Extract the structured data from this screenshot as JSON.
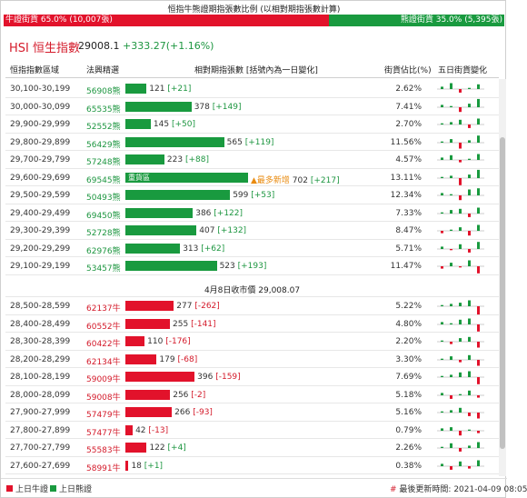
{
  "top_title": "恒指牛熊證期指張數比例 (以相對期指張數計算)",
  "ratio": {
    "bull_label": "牛證街貨 65.0% (10,007張)",
    "bull_pct": 65.0,
    "bear_label": "熊證街貨 35.0% (5,395張)",
    "bear_pct": 35.0
  },
  "index": {
    "title": "HSI 恒生指數",
    "value": "29008.1",
    "change": "+333.27(+1.16%)"
  },
  "headers": {
    "range": "恒指指數區域",
    "code": "法興精選",
    "contracts": "相對期指張數 [括號內為一日變化]",
    "ratio": "街貨佔比(%)",
    "five_day": "五日街貨變化"
  },
  "rows_above": [
    {
      "range": "30,100-30,199",
      "code": "56908熊",
      "type": "bear",
      "value": 121,
      "change": "[+21]",
      "pct": "2.62%",
      "spark": [
        2,
        5,
        -3,
        1,
        4
      ]
    },
    {
      "range": "30,000-30,099",
      "code": "65535熊",
      "type": "bear",
      "value": 378,
      "change": "[+149]",
      "pct": "7.41%",
      "spark": [
        2,
        1,
        -4,
        3,
        7
      ]
    },
    {
      "range": "29,900-29,999",
      "code": "52552熊",
      "type": "bear",
      "value": 145,
      "change": "[+50]",
      "pct": "2.70%",
      "spark": [
        1,
        2,
        4,
        -3,
        5
      ]
    },
    {
      "range": "29,800-29,899",
      "code": "56429熊",
      "type": "bear",
      "value": 565,
      "change": "[+119]",
      "pct": "11.56%",
      "spark": [
        1,
        3,
        -5,
        2,
        6
      ]
    },
    {
      "range": "29,700-29,799",
      "code": "57248熊",
      "type": "bear",
      "value": 223,
      "change": "[+88]",
      "pct": "4.57%",
      "spark": [
        2,
        4,
        -2,
        1,
        5
      ]
    },
    {
      "range": "29,600-29,699",
      "code": "69545熊",
      "type": "bear",
      "value": 702,
      "change": "[+217]",
      "pct": "13.11%",
      "spark": [
        1,
        2,
        -6,
        3,
        7
      ],
      "inner": "重貨區",
      "flag": "▲最多新增"
    },
    {
      "range": "29,500-29,599",
      "code": "50493熊",
      "type": "bear",
      "value": 599,
      "change": "[+53]",
      "pct": "12.34%",
      "spark": [
        2,
        1,
        -4,
        5,
        6
      ]
    },
    {
      "range": "29,400-29,499",
      "code": "69450熊",
      "type": "bear",
      "value": 386,
      "change": "[+122]",
      "pct": "7.33%",
      "spark": [
        1,
        3,
        4,
        -3,
        5
      ]
    },
    {
      "range": "29,300-29,399",
      "code": "52728熊",
      "type": "bear",
      "value": 407,
      "change": "[+132]",
      "pct": "8.47%",
      "spark": [
        -2,
        1,
        3,
        -4,
        5
      ]
    },
    {
      "range": "29,200-29,299",
      "code": "62976熊",
      "type": "bear",
      "value": 313,
      "change": "[+62]",
      "pct": "5.71%",
      "spark": [
        2,
        -1,
        4,
        -3,
        6
      ]
    },
    {
      "range": "29,100-29,199",
      "code": "53457熊",
      "type": "bear",
      "value": 523,
      "change": "[+193]",
      "pct": "11.47%",
      "spark": [
        -2,
        3,
        -1,
        5,
        -6
      ]
    }
  ],
  "midline": "4月8日收市價 29,008.07",
  "rows_below": [
    {
      "range": "28,500-28,599",
      "code": "62137牛",
      "type": "bull",
      "value": 277,
      "change": "[-262]",
      "pct": "5.22%",
      "spark": [
        1,
        2,
        3,
        5,
        -7
      ]
    },
    {
      "range": "28,400-28,499",
      "code": "60552牛",
      "type": "bull",
      "value": 255,
      "change": "[-141]",
      "pct": "4.80%",
      "spark": [
        2,
        1,
        4,
        5,
        -6
      ]
    },
    {
      "range": "28,300-28,399",
      "code": "60422牛",
      "type": "bull",
      "value": 110,
      "change": "[-176]",
      "pct": "2.20%",
      "spark": [
        1,
        -2,
        3,
        4,
        -5
      ]
    },
    {
      "range": "28,200-28,299",
      "code": "62134牛",
      "type": "bull",
      "value": 179,
      "change": "[-68]",
      "pct": "3.30%",
      "spark": [
        1,
        3,
        -2,
        4,
        -5
      ]
    },
    {
      "range": "28,100-28,199",
      "code": "59009牛",
      "type": "bull",
      "value": 396,
      "change": "[-159]",
      "pct": "7.69%",
      "spark": [
        1,
        2,
        4,
        5,
        -6
      ]
    },
    {
      "range": "28,000-28,099",
      "code": "59008牛",
      "type": "bull",
      "value": 256,
      "change": "[-2]",
      "pct": "5.18%",
      "spark": [
        2,
        -3,
        1,
        4,
        -2
      ]
    },
    {
      "range": "27,900-27,999",
      "code": "57479牛",
      "type": "bull",
      "value": 266,
      "change": "[-93]",
      "pct": "5.16%",
      "spark": [
        1,
        2,
        4,
        -3,
        -5
      ]
    },
    {
      "range": "27,800-27,899",
      "code": "57477牛",
      "type": "bull",
      "value": 42,
      "change": "[-13]",
      "pct": "0.79%",
      "spark": [
        2,
        3,
        -4,
        1,
        -2
      ]
    },
    {
      "range": "27,700-27,799",
      "code": "55583牛",
      "type": "bull",
      "value": 122,
      "change": "[+4]",
      "pct": "2.26%",
      "spark": [
        1,
        4,
        -3,
        2,
        5
      ]
    },
    {
      "range": "27,600-27,699",
      "code": "58991牛",
      "type": "bull",
      "value": 18,
      "change": "[+1]",
      "pct": "0.38%",
      "spark": [
        2,
        -3,
        4,
        -2,
        5
      ]
    }
  ],
  "footer": {
    "bull_legend": "上日牛證",
    "bear_legend": "上日熊證",
    "updated": "最後更新時間: 2021-04-09 08:05"
  },
  "colors": {
    "bull": "#e2122b",
    "bear": "#199a3f"
  }
}
